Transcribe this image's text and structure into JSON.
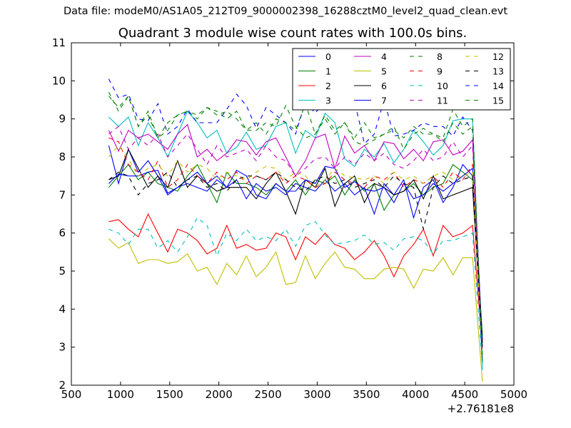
{
  "header": {
    "suptitle": "Data file: modeM0/AS1A05_212T09_9000002398_16288cztM0_level2_quad_clean.evt",
    "title": "Quadrant 3 module wise count rates with 100.0s bins."
  },
  "chart_data": {
    "type": "line",
    "title": "Quadrant 3 module wise count rates with 100.0s bins.",
    "xlabel": "",
    "ylabel": "",
    "x_offset_label": "+2.76181e8",
    "xlim": [
      500,
      5000
    ],
    "ylim": [
      2,
      11
    ],
    "xticks": [
      500,
      1000,
      1500,
      2000,
      2500,
      3000,
      3500,
      4000,
      4500,
      5000
    ],
    "yticks": [
      2,
      3,
      4,
      5,
      6,
      7,
      8,
      9,
      10,
      11
    ],
    "grid": false,
    "legend_position": "top-right",
    "legend_columns": 4,
    "x": [
      880,
      980,
      1080,
      1180,
      1280,
      1380,
      1480,
      1580,
      1680,
      1780,
      1880,
      1980,
      2080,
      2180,
      2280,
      2380,
      2480,
      2580,
      2680,
      2780,
      2880,
      2980,
      3080,
      3180,
      3280,
      3380,
      3480,
      3580,
      3680,
      3780,
      3880,
      3980,
      4080,
      4180,
      4280,
      4380,
      4480,
      4580,
      4680
    ],
    "series": [
      {
        "name": "0",
        "color": "#0000ff",
        "dash": "solid",
        "values": [
          8.3,
          7.3,
          8.2,
          7.6,
          7.9,
          7.5,
          7.0,
          7.2,
          7.3,
          7.2,
          7.1,
          7.4,
          7.2,
          7.4,
          6.9,
          7.3,
          7.1,
          7.2,
          7.0,
          7.3,
          7.2,
          7.1,
          7.4,
          7.1,
          7.3,
          7.0,
          7.2,
          6.5,
          7.3,
          7.0,
          7.4,
          6.4,
          7.2,
          7.4,
          6.8,
          7.2,
          7.8,
          7.5,
          3.2
        ]
      },
      {
        "name": "1",
        "color": "#008000",
        "dash": "solid",
        "values": [
          7.2,
          7.5,
          7.8,
          7.4,
          7.6,
          7.3,
          7.2,
          7.1,
          7.5,
          7.8,
          7.3,
          6.8,
          7.6,
          7.3,
          7.3,
          7.2,
          7.0,
          7.3,
          7.1,
          7.4,
          7.0,
          7.4,
          7.3,
          7.5,
          7.0,
          7.4,
          7.1,
          7.3,
          6.6,
          7.0,
          7.1,
          7.3,
          7.0,
          7.2,
          7.3,
          7.8,
          7.6,
          7.4,
          3.3
        ]
      },
      {
        "name": "2",
        "color": "#ff0000",
        "dash": "solid",
        "values": [
          6.3,
          6.35,
          6.1,
          5.9,
          6.5,
          6.0,
          5.5,
          6.1,
          6.0,
          5.8,
          5.45,
          5.6,
          6.2,
          5.6,
          5.7,
          5.55,
          5.6,
          6.0,
          5.9,
          5.3,
          5.9,
          5.7,
          6.0,
          5.7,
          5.6,
          5.3,
          5.5,
          5.8,
          5.4,
          4.85,
          5.4,
          5.7,
          6.1,
          5.4,
          6.2,
          5.9,
          6.0,
          6.2,
          3.0
        ]
      },
      {
        "name": "3",
        "color": "#00bfbf",
        "dash": "solid",
        "values": [
          9.05,
          8.8,
          9.05,
          8.3,
          8.9,
          8.5,
          8.0,
          8.6,
          9.2,
          8.9,
          8.5,
          8.7,
          8.1,
          8.25,
          8.65,
          8.2,
          8.3,
          8.8,
          8.9,
          8.1,
          8.7,
          8.5,
          9.15,
          8.9,
          7.95,
          7.75,
          8.2,
          8.0,
          8.35,
          7.85,
          8.2,
          8.7,
          8.4,
          8.05,
          8.3,
          8.95,
          9.0,
          9.0,
          2.4
        ]
      },
      {
        "name": "4",
        "color": "#bf00bf",
        "dash": "solid",
        "values": [
          8.7,
          8.15,
          8.7,
          8.5,
          8.6,
          8.4,
          8.2,
          8.6,
          8.85,
          8.0,
          8.2,
          7.9,
          8.1,
          8.45,
          8.4,
          8.05,
          8.4,
          8.5,
          8.0,
          7.5,
          7.9,
          8.5,
          8.6,
          7.7,
          8.55,
          8.1,
          8.3,
          7.9,
          8.4,
          8.35,
          7.95,
          8.2,
          7.9,
          8.4,
          8.45,
          8.05,
          8.15,
          8.45,
          3.0
        ]
      },
      {
        "name": "5",
        "color": "#bfbf00",
        "dash": "solid",
        "values": [
          5.85,
          5.6,
          5.75,
          5.2,
          5.3,
          5.3,
          5.2,
          5.25,
          5.45,
          5.0,
          5.1,
          4.65,
          5.2,
          4.9,
          5.4,
          4.85,
          5.1,
          5.5,
          4.65,
          4.7,
          5.4,
          4.8,
          5.2,
          5.5,
          5.1,
          5.05,
          4.8,
          4.8,
          5.05,
          5.1,
          5.05,
          4.55,
          5.05,
          5.0,
          5.35,
          4.9,
          5.35,
          5.35,
          2.1
        ]
      },
      {
        "name": "6",
        "color": "#000000",
        "dash": "solid",
        "values": [
          7.4,
          7.5,
          8.2,
          7.7,
          7.2,
          7.5,
          7.2,
          7.9,
          7.2,
          7.5,
          7.3,
          7.1,
          7.2,
          7.2,
          7.2,
          6.9,
          7.3,
          7.6,
          7.1,
          6.5,
          7.4,
          7.2,
          7.7,
          6.7,
          7.3,
          7.5,
          6.8,
          7.3,
          7.2,
          7.0,
          7.1,
          7.4,
          6.9,
          7.5,
          6.9,
          7.0,
          7.1,
          7.2,
          3.0
        ]
      },
      {
        "name": "7",
        "color": "#0000ff",
        "dash": "solid",
        "values": [
          7.3,
          7.55,
          7.5,
          7.5,
          7.6,
          7.65,
          7.05,
          7.2,
          7.4,
          7.6,
          7.3,
          7.5,
          7.2,
          7.65,
          7.5,
          7.0,
          6.9,
          7.3,
          7.1,
          7.1,
          7.4,
          7.3,
          7.75,
          7.7,
          7.2,
          7.35,
          7.15,
          7.1,
          7.2,
          6.8,
          7.3,
          6.9,
          7.0,
          7.3,
          7.1,
          7.3,
          7.5,
          7.7,
          2.6
        ]
      },
      {
        "name": "8",
        "color": "#008000",
        "dash": "dash",
        "values": [
          9.7,
          9.2,
          9.6,
          8.8,
          9.1,
          8.5,
          8.9,
          9.1,
          9.2,
          9.0,
          9.3,
          9.1,
          9.2,
          9.0,
          8.7,
          8.7,
          8.9,
          8.8,
          9.35,
          8.8,
          8.5,
          8.6,
          9.1,
          8.7,
          8.9,
          8.4,
          8.3,
          8.45,
          8.6,
          8.7,
          8.5,
          8.8,
          8.6,
          8.6,
          8.5,
          9.25,
          8.8,
          9.0,
          2.6
        ]
      },
      {
        "name": "9",
        "color": "#ff0000",
        "dash": "dash",
        "values": [
          8.5,
          8.4,
          7.8,
          7.6,
          7.4,
          7.9,
          7.2,
          7.4,
          7.8,
          7.5,
          7.3,
          7.6,
          7.4,
          7.6,
          7.3,
          7.5,
          7.4,
          7.6,
          7.3,
          7.5,
          7.4,
          7.2,
          7.3,
          7.6,
          7.4,
          7.3,
          7.2,
          7.5,
          7.4,
          7.6,
          7.2,
          7.4,
          7.3,
          7.5,
          7.2,
          7.6,
          7.4,
          7.8,
          2.9
        ]
      },
      {
        "name": "10",
        "color": "#00bfbf",
        "dash": "dash",
        "values": [
          6.1,
          6.0,
          5.7,
          6.1,
          6.1,
          5.6,
          5.8,
          5.5,
          5.9,
          6.4,
          6.2,
          5.4,
          6.0,
          5.8,
          6.1,
          5.8,
          5.9,
          5.8,
          6.1,
          5.65,
          6.2,
          6.3,
          5.95,
          5.7,
          5.75,
          5.8,
          5.95,
          5.7,
          5.75,
          5.55,
          5.85,
          5.9,
          5.8,
          5.45,
          5.8,
          5.8,
          5.9,
          6.0,
          2.5
        ]
      },
      {
        "name": "11",
        "color": "#bf00bf",
        "dash": "dash",
        "values": [
          8.6,
          8.8,
          8.2,
          8.5,
          8.3,
          8.6,
          8.0,
          8.3,
          8.6,
          8.2,
          7.8,
          8.3,
          8.0,
          8.1,
          8.2,
          7.9,
          8.3,
          8.0,
          7.9,
          7.5,
          7.7,
          7.95,
          8.0,
          7.7,
          8.0,
          7.8,
          8.1,
          7.9,
          8.1,
          7.8,
          7.7,
          7.9,
          8.2,
          7.9,
          8.0,
          8.4,
          8.0,
          8.3,
          2.8
        ]
      },
      {
        "name": "12",
        "color": "#bfbf00",
        "dash": "dash",
        "values": [
          8.0,
          8.3,
          7.95,
          7.5,
          7.7,
          7.8,
          7.5,
          7.9,
          7.6,
          7.8,
          7.7,
          7.4,
          7.6,
          7.5,
          7.4,
          7.6,
          7.75,
          7.7,
          7.4,
          7.6,
          7.5,
          7.2,
          7.4,
          7.7,
          7.5,
          7.45,
          7.4,
          7.5,
          7.3,
          7.6,
          7.4,
          7.5,
          7.3,
          7.5,
          7.6,
          7.4,
          7.5,
          7.6,
          2.7
        ]
      },
      {
        "name": "13",
        "color": "#000000",
        "dash": "dash",
        "values": [
          7.4,
          7.6,
          7.5,
          7.0,
          7.3,
          7.4,
          7.6,
          7.2,
          7.4,
          7.5,
          7.2,
          7.3,
          7.1,
          7.4,
          7.5,
          7.5,
          7.4,
          7.6,
          7.4,
          7.2,
          7.1,
          7.4,
          7.5,
          7.3,
          7.4,
          7.2,
          7.3,
          7.4,
          7.2,
          7.5,
          7.3,
          7.2,
          6.1,
          7.2,
          7.5,
          7.3,
          7.4,
          7.5,
          3.1
        ]
      },
      {
        "name": "14",
        "color": "#0000ff",
        "dash": "dash",
        "values": [
          10.05,
          9.55,
          9.65,
          9.0,
          8.95,
          9.4,
          8.6,
          8.8,
          9.25,
          8.9,
          8.9,
          8.9,
          9.25,
          9.65,
          9.35,
          8.75,
          9.3,
          9.1,
          8.9,
          8.6,
          9.45,
          9.15,
          9.5,
          9.35,
          9.25,
          9.45,
          8.35,
          8.6,
          9.5,
          8.55,
          8.6,
          8.7,
          8.9,
          8.8,
          8.8,
          8.55,
          9.05,
          8.7,
          2.9
        ]
      },
      {
        "name": "15",
        "color": "#008000",
        "dash": "dash",
        "values": [
          9.6,
          9.3,
          9.6,
          8.8,
          9.2,
          8.5,
          8.7,
          9.1,
          9.2,
          9.1,
          9.3,
          9.2,
          9.0,
          9.2,
          8.7,
          8.9,
          8.6,
          9.0,
          8.9,
          8.7,
          9.4,
          8.6,
          9.0,
          8.6,
          8.9,
          8.5,
          8.9,
          8.5,
          8.6,
          8.8,
          8.2,
          8.6,
          8.75,
          8.6,
          8.4,
          8.9,
          8.6,
          8.8,
          2.7
        ]
      }
    ]
  }
}
